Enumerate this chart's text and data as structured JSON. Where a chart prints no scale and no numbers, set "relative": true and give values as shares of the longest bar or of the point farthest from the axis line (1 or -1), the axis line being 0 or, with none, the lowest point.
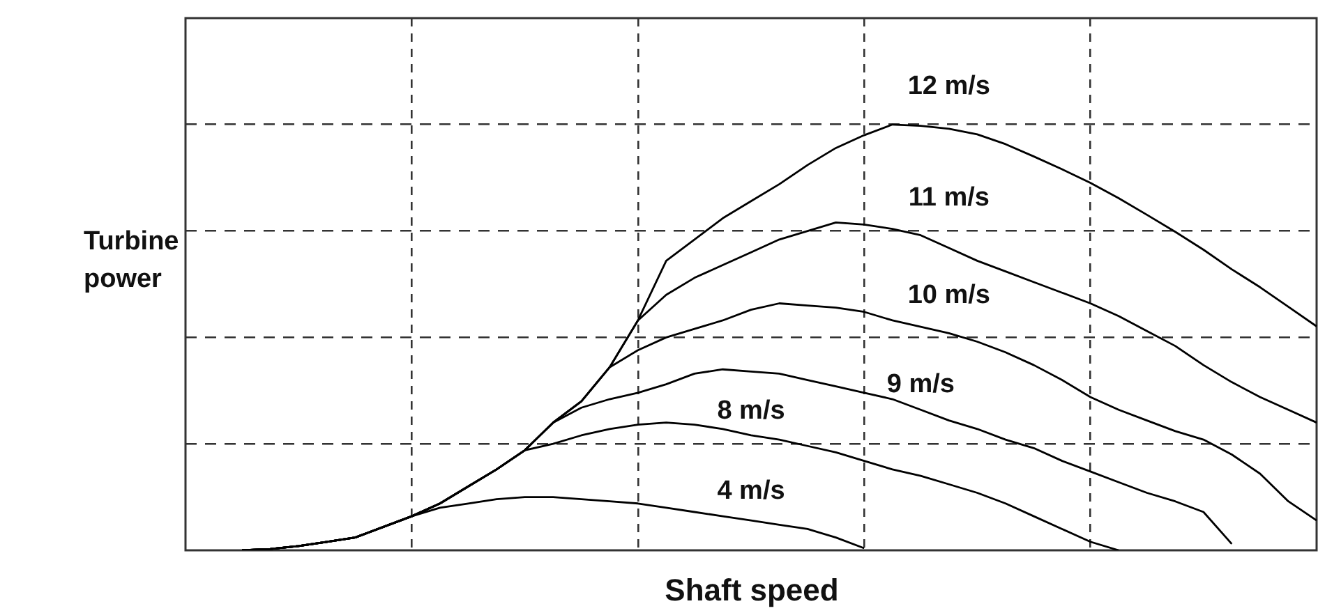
{
  "chart_data": {
    "type": "line",
    "relative": true,
    "xlabel": "Shaft speed",
    "ylabel": "Turbine power",
    "grid": true,
    "categories": [
      null,
      null,
      null,
      null,
      null,
      null,
      null,
      null,
      null,
      null,
      null,
      null,
      null,
      null,
      null,
      null,
      null,
      null,
      null,
      null,
      null,
      null,
      null,
      null,
      null,
      null,
      null,
      null,
      null,
      null,
      null,
      null,
      null,
      null,
      null,
      null,
      null,
      null,
      null,
      null,
      null
    ],
    "series": [
      {
        "name": "12 m/s",
        "color": "#000000",
        "values": [
          null,
          null,
          0,
          0.003,
          0.01,
          0.02,
          0.03,
          0.055,
          0.08,
          0.11,
          0.15,
          0.19,
          0.235,
          0.3,
          0.35,
          0.43,
          0.54,
          0.68,
          0.73,
          0.78,
          0.82,
          0.86,
          0.905,
          0.945,
          0.975,
          1,
          0.997,
          0.99,
          0.977,
          0.954,
          0.925,
          0.895,
          0.863,
          0.827,
          0.788,
          0.748,
          0.706,
          0.66,
          0.618,
          0.572,
          0.526
        ]
      },
      {
        "name": "11 m/s",
        "color": "#000000",
        "values": [
          null,
          null,
          0,
          0.003,
          0.01,
          0.02,
          0.03,
          0.055,
          0.08,
          0.11,
          0.15,
          0.19,
          0.235,
          0.3,
          0.35,
          0.43,
          0.54,
          0.6,
          0.64,
          0.67,
          0.7,
          0.73,
          0.75,
          0.77,
          0.765,
          0.755,
          0.74,
          0.71,
          0.68,
          0.655,
          0.63,
          0.605,
          0.58,
          0.55,
          0.515,
          0.48,
          0.435,
          0.395,
          0.36,
          0.33,
          0.3
        ]
      },
      {
        "name": "10 m/s",
        "color": "#000000",
        "values": [
          null,
          null,
          0,
          0.003,
          0.01,
          0.02,
          0.03,
          0.055,
          0.08,
          0.11,
          0.15,
          0.19,
          0.235,
          0.3,
          0.35,
          0.43,
          0.47,
          0.5,
          0.52,
          0.54,
          0.565,
          0.58,
          0.575,
          0.57,
          0.56,
          0.54,
          0.525,
          0.51,
          0.49,
          0.465,
          0.435,
          0.4,
          0.36,
          0.33,
          0.305,
          0.28,
          0.26,
          0.225,
          0.18,
          0.115,
          0.07
        ]
      },
      {
        "name": "9 m/s",
        "color": "#000000",
        "values": [
          null,
          null,
          0,
          0.003,
          0.01,
          0.02,
          0.03,
          0.055,
          0.08,
          0.11,
          0.15,
          0.19,
          0.235,
          0.3,
          0.335,
          0.355,
          0.37,
          0.39,
          0.415,
          0.425,
          0.42,
          0.415,
          0.4,
          0.385,
          0.37,
          0.355,
          0.33,
          0.305,
          0.285,
          0.26,
          0.24,
          0.21,
          0.185,
          0.16,
          0.135,
          0.115,
          0.09,
          0.015,
          null,
          null,
          null
        ]
      },
      {
        "name": "8 m/s",
        "color": "#000000",
        "values": [
          null,
          null,
          0,
          0.003,
          0.01,
          0.02,
          0.03,
          0.055,
          0.08,
          0.11,
          0.15,
          0.19,
          0.235,
          0.25,
          0.27,
          0.285,
          0.295,
          0.3,
          0.295,
          0.285,
          0.27,
          0.26,
          0.245,
          0.23,
          0.21,
          0.19,
          0.175,
          0.155,
          0.135,
          0.11,
          0.08,
          0.05,
          0.02,
          0,
          null,
          null,
          null,
          null,
          null,
          null,
          null
        ]
      },
      {
        "name": "4 m/s",
        "color": "#000000",
        "values": [
          null,
          null,
          0,
          0.003,
          0.01,
          0.02,
          0.03,
          0.055,
          0.08,
          0.1,
          0.11,
          0.12,
          0.125,
          0.125,
          0.12,
          0.115,
          0.11,
          0.1,
          0.09,
          0.08,
          0.07,
          0.06,
          0.05,
          0.03,
          0.005,
          null,
          null,
          null,
          null,
          null,
          null,
          null,
          null,
          null,
          null,
          null,
          null,
          null,
          null,
          null,
          null
        ]
      }
    ]
  }
}
